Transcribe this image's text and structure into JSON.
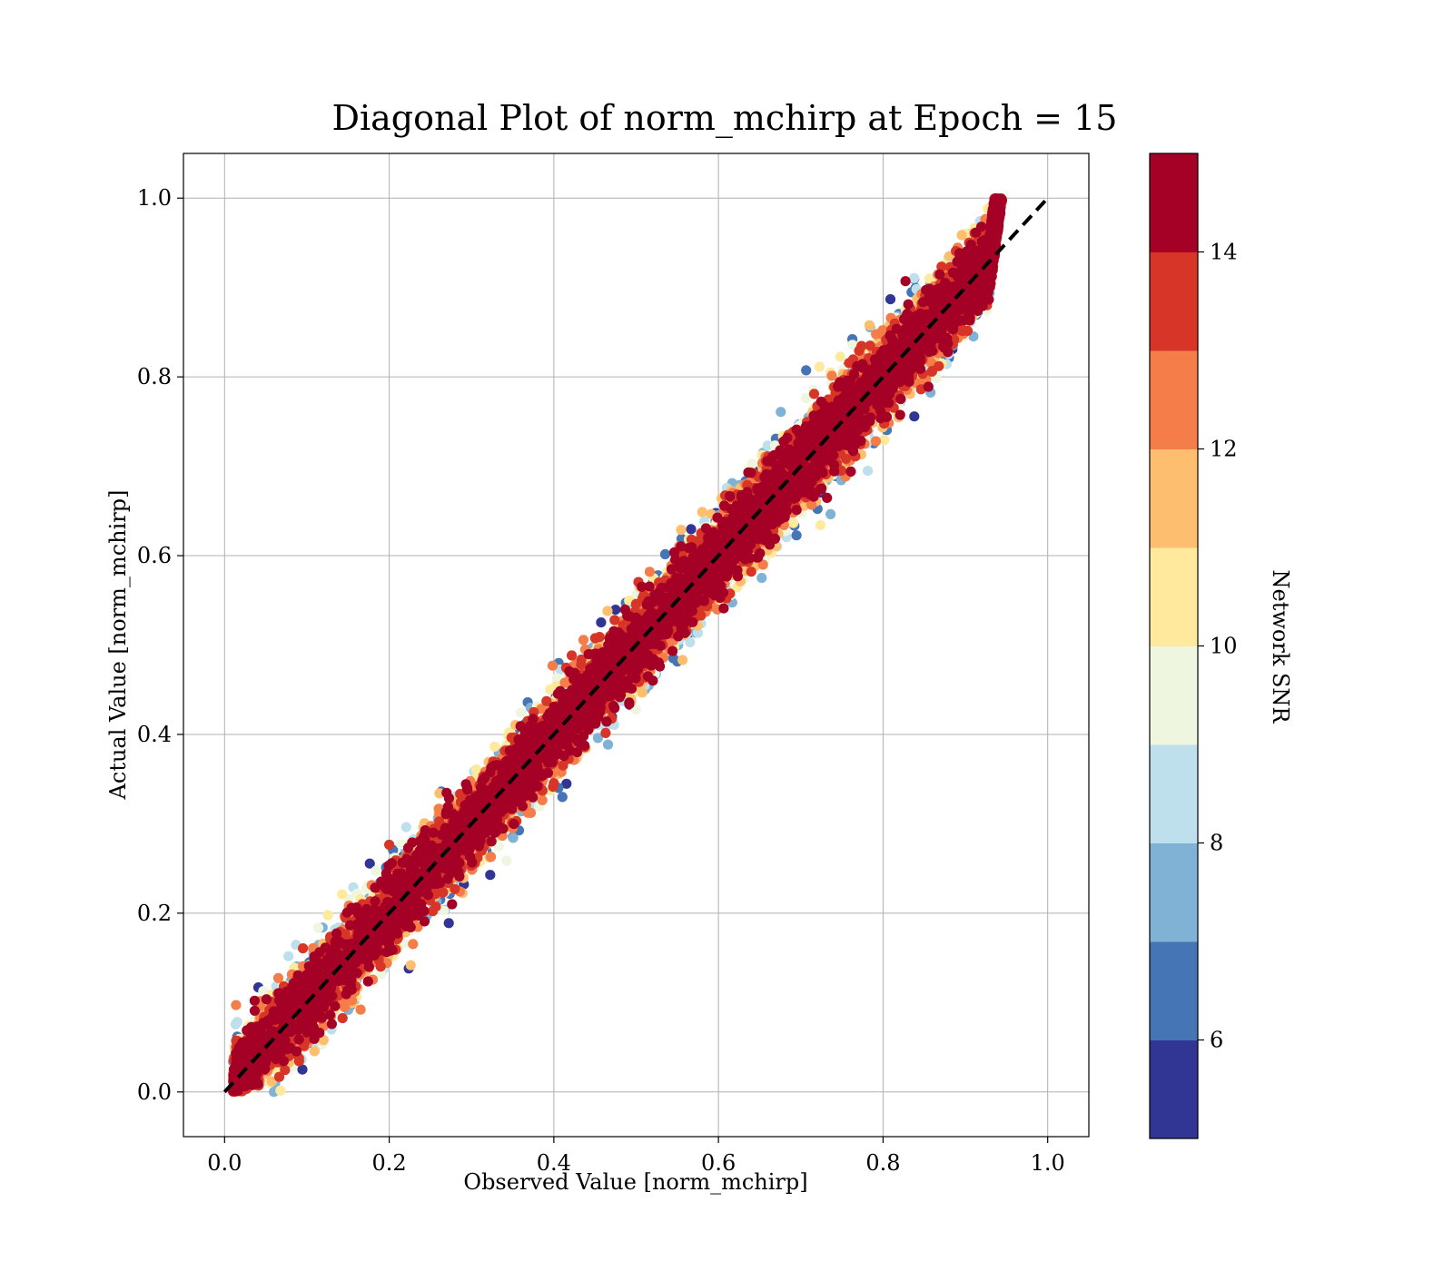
{
  "chart_data": {
    "type": "scatter",
    "title": "Diagonal Plot of norm_mchirp at Epoch = 15",
    "xlabel": "Observed Value [norm_mchirp]",
    "ylabel": "Actual Value [norm_mchirp]",
    "xlim": [
      -0.05,
      1.05
    ],
    "ylim": [
      -0.05,
      1.05
    ],
    "xticks": [
      "0.0",
      "0.2",
      "0.4",
      "0.6",
      "0.8",
      "1.0"
    ],
    "yticks": [
      "0.0",
      "0.2",
      "0.4",
      "0.6",
      "0.8",
      "1.0"
    ],
    "grid": true,
    "reference_line": {
      "style": "dashed",
      "color": "#000000",
      "from": [
        0,
        0
      ],
      "to": [
        1,
        1
      ]
    },
    "point_generation": {
      "count": 16000,
      "noise_min": 0.018,
      "noise_scale": 0.6,
      "x_cap_base": 0.8,
      "x_cap_slope": 0.145
    },
    "colorbar": {
      "label": "Network SNR",
      "range": [
        5,
        15
      ],
      "ticks": [
        "6",
        "8",
        "10",
        "12",
        "14"
      ],
      "bins": [
        {
          "from": 5,
          "to": 6,
          "color": "#313695"
        },
        {
          "from": 6,
          "to": 7,
          "color": "#4575b4"
        },
        {
          "from": 7,
          "to": 8,
          "color": "#80b2d5"
        },
        {
          "from": 8,
          "to": 9,
          "color": "#bde0ec"
        },
        {
          "from": 9,
          "to": 10,
          "color": "#eef6e0"
        },
        {
          "from": 10,
          "to": 11,
          "color": "#fee99d"
        },
        {
          "from": 11,
          "to": 12,
          "color": "#fdbe70"
        },
        {
          "from": 12,
          "to": 13,
          "color": "#f57d4a"
        },
        {
          "from": 13,
          "to": 14,
          "color": "#d73527"
        },
        {
          "from": 14,
          "to": 15,
          "color": "#a50026"
        }
      ]
    }
  }
}
